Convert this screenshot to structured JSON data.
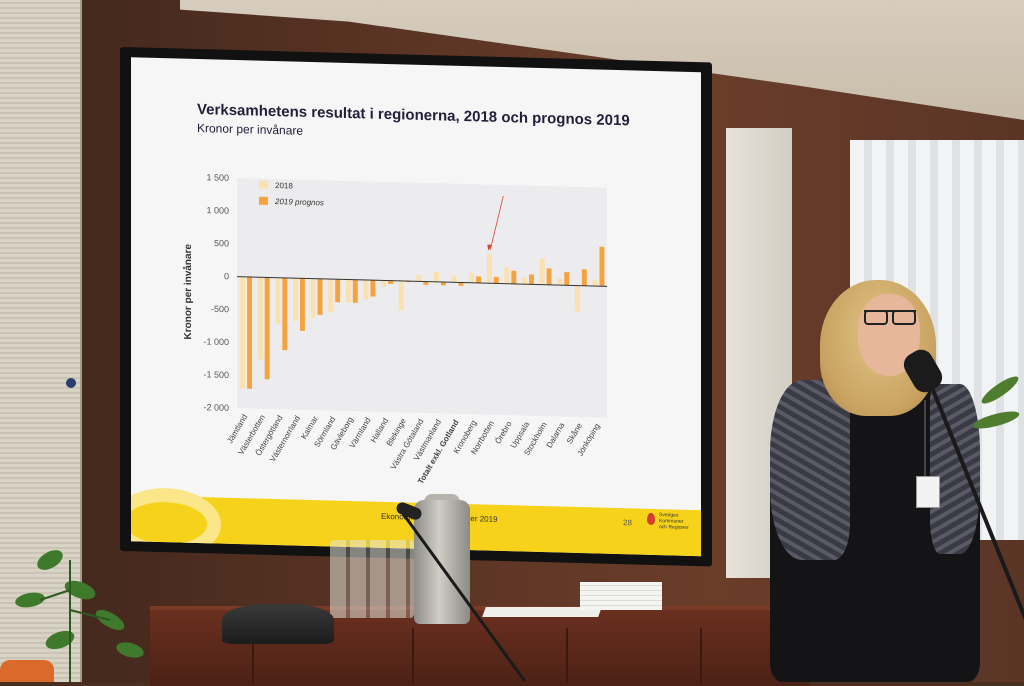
{
  "slide": {
    "title": "Verksamhetens resultat i regionerna, 2018 och prognos 2019",
    "subtitle": "Kronor per invånare",
    "footer_text": "Ekonomirapporten, oktober 2019",
    "page_number": "28",
    "logo_lines": [
      "Sveriges",
      "Kommuner",
      "och Regioner"
    ]
  },
  "chart_data": {
    "type": "bar",
    "ylabel": "Kronor per invånare",
    "ylim": [
      -2000,
      1500
    ],
    "yticks": [
      "1 500",
      "1 000",
      "500",
      "0",
      "-500",
      "-1 000",
      "-1 500",
      "-2 000"
    ],
    "ytick_values": [
      1500,
      1000,
      500,
      0,
      -500,
      -1000,
      -1500,
      -2000
    ],
    "legend_position": "top-left",
    "categories": [
      "Jämtland",
      "Västerbotten",
      "Östergötland",
      "Västernorrland",
      "Kalmar",
      "Sörmland",
      "Gävleborg",
      "Värmland",
      "Halland",
      "Blekinge",
      "Västra Götaland",
      "Västmanland",
      "Totalt exkl. Gotland",
      "Kronoberg",
      "Norrbotten",
      "Örebro",
      "Uppsala",
      "Stockholm",
      "Dalarna",
      "Skåne",
      "Jönköping"
    ],
    "series": [
      {
        "name": "2018",
        "color": "#fbe0b0",
        "values": [
          -1700,
          -1250,
          -700,
          -650,
          -600,
          -500,
          -350,
          -300,
          -100,
          -450,
          100,
          150,
          100,
          150,
          450,
          250,
          100,
          400,
          100,
          -400,
          100
        ]
      },
      {
        "name": "2019 prognos",
        "color": "#f5a33e",
        "values": [
          -1700,
          -1550,
          -1100,
          -800,
          -550,
          -350,
          -350,
          -250,
          -50,
          0,
          -50,
          -50,
          -50,
          100,
          100,
          200,
          150,
          250,
          200,
          250,
          600
        ]
      }
    ],
    "annotation": "arrow pointing to Norrbotten 2018 bar"
  }
}
